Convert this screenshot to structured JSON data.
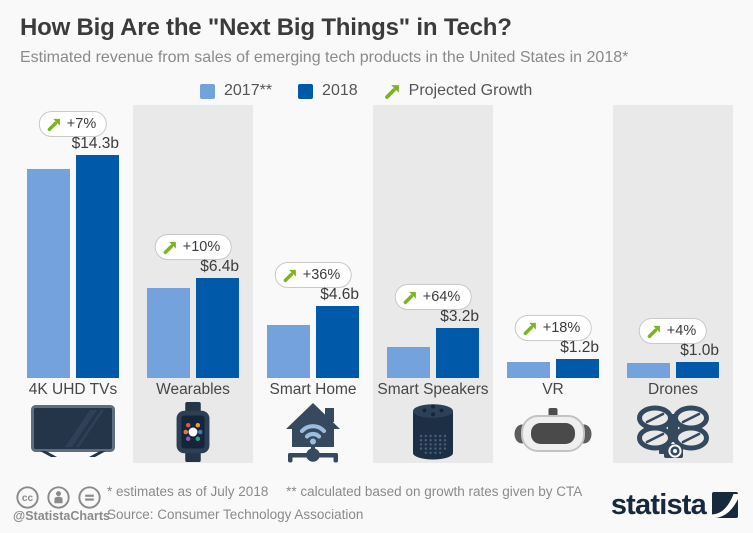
{
  "colors": {
    "background": "#f9f9f9",
    "panel": "#e9e9e9",
    "bar_2017": "#74a2dc",
    "bar_2018": "#0059a9",
    "growth_green": "#7ab51f",
    "title_text": "#3b3b3b",
    "muted_text": "#8a8a8a",
    "brand_navy": "#16293d"
  },
  "chart_data": {
    "type": "bar",
    "title": "How Big Are the \"Next Big Things\" in Tech?",
    "subtitle": "Estimated revenue from sales of emerging tech products in the United States in 2018*",
    "unit": "billion USD",
    "ylim": [
      0,
      15
    ],
    "grid": false,
    "legend_position": "top",
    "categories": [
      "4K UHD TVs",
      "Wearables",
      "Smart Home",
      "Smart Speakers",
      "VR",
      "Drones"
    ],
    "series": [
      {
        "name": "2017**",
        "color": "#74a2dc",
        "values": [
          13.4,
          5.8,
          3.4,
          2.0,
          1.0,
          0.96
        ]
      },
      {
        "name": "2018",
        "color": "#0059a9",
        "values": [
          14.3,
          6.4,
          4.6,
          3.2,
          1.2,
          1.0
        ]
      }
    ],
    "growth": [
      "+7%",
      "+10%",
      "+36%",
      "+64%",
      "+18%",
      "+4%"
    ],
    "value_labels": [
      "$14.3b",
      "$6.4b",
      "$4.6b",
      "$3.2b",
      "$1.2b",
      "$1.0b"
    ]
  },
  "legend": {
    "items": [
      {
        "label": "2017**",
        "type": "swatch",
        "color": "#74a2dc"
      },
      {
        "label": "2018",
        "type": "swatch",
        "color": "#0059a9"
      },
      {
        "label": "Projected Growth",
        "type": "arrow",
        "color": "#7ab51f"
      }
    ]
  },
  "footer": {
    "note1": "* estimates as of July 2018",
    "note2": "** calculated based on growth rates given by CTA",
    "source": "Source: Consumer Technology Association",
    "handle": "@StatistaCharts",
    "brand": "statista",
    "license_icons": [
      "cc-icon",
      "attribution-icon",
      "no-derivatives-icon"
    ]
  }
}
